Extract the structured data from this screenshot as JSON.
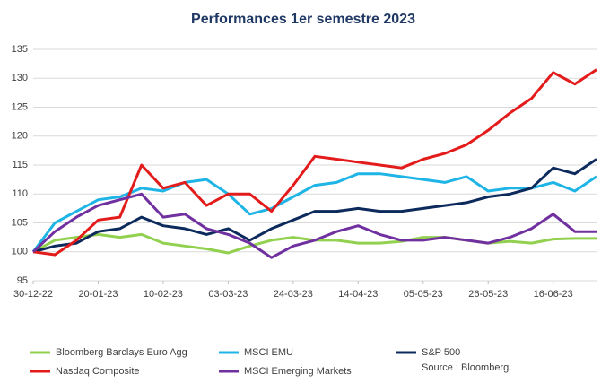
{
  "chart_data": {
    "type": "line",
    "title": "Performances 1er semestre 2023",
    "source": "Source : Bloomberg",
    "x": [
      "2022-12-30",
      "2023-01-06",
      "2023-01-13",
      "2023-01-20",
      "2023-01-27",
      "2023-02-03",
      "2023-02-10",
      "2023-02-17",
      "2023-02-24",
      "2023-03-03",
      "2023-03-10",
      "2023-03-17",
      "2023-03-24",
      "2023-03-31",
      "2023-04-07",
      "2023-04-14",
      "2023-04-21",
      "2023-04-28",
      "2023-05-05",
      "2023-05-12",
      "2023-05-19",
      "2023-05-26",
      "2023-06-02",
      "2023-06-09",
      "2023-06-16",
      "2023-06-23",
      "2023-06-30"
    ],
    "xlim": [
      "2022-12-30",
      "2023-06-30"
    ],
    "xticks": [
      {
        "value": "2022-12-30",
        "label": "30-12-22"
      },
      {
        "value": "2023-01-20",
        "label": "20-01-23"
      },
      {
        "value": "2023-02-10",
        "label": "10-02-23"
      },
      {
        "value": "2023-03-03",
        "label": "03-03-23"
      },
      {
        "value": "2023-03-24",
        "label": "24-03-23"
      },
      {
        "value": "2023-04-14",
        "label": "14-04-23"
      },
      {
        "value": "2023-05-05",
        "label": "05-05-23"
      },
      {
        "value": "2023-05-26",
        "label": "26-05-23"
      },
      {
        "value": "2023-06-16",
        "label": "16-06-23"
      }
    ],
    "ylim": [
      95,
      135
    ],
    "yticks": [
      95,
      100,
      105,
      110,
      115,
      120,
      125,
      130,
      135
    ],
    "grid": true,
    "legend": "bottom",
    "series": [
      {
        "name": "Bloomberg Barclays Euro Agg",
        "color": "#92d050",
        "values": [
          100,
          102,
          102.5,
          103,
          102.5,
          103,
          101.5,
          101,
          100.5,
          99.8,
          101,
          102,
          102.5,
          102,
          102,
          101.5,
          101.5,
          101.8,
          102.5,
          102.5,
          102,
          101.5,
          101.8,
          101.5,
          102.2,
          102.3,
          102.3
        ]
      },
      {
        "name": "MSCI EMU",
        "color": "#1fb4e6",
        "values": [
          100,
          105,
          107,
          109,
          109.5,
          111,
          110.5,
          112,
          112.5,
          110,
          106.5,
          107.5,
          109.5,
          111.5,
          112,
          113.5,
          113.5,
          113,
          112.5,
          112,
          113,
          110.5,
          111,
          111,
          112,
          110.5,
          113
        ]
      },
      {
        "name": "S&P 500",
        "color": "#0d2a5c",
        "values": [
          100,
          101,
          101.5,
          103.5,
          104,
          106,
          104.5,
          104,
          103,
          104,
          102,
          104,
          105.5,
          107,
          107,
          107.5,
          107,
          107,
          107.5,
          108,
          108.5,
          109.5,
          110,
          111,
          114.5,
          113.5,
          116
        ]
      },
      {
        "name": "Nasdaq Composite",
        "color": "#e31b1b",
        "values": [
          100,
          99.5,
          102,
          105.5,
          106,
          115,
          111,
          112,
          108,
          110,
          110,
          107,
          111.5,
          116.5,
          116,
          115.5,
          115,
          114.5,
          116,
          117,
          118.5,
          121,
          124,
          126.5,
          131,
          129,
          131.5
        ]
      },
      {
        "name": "MSCI Emerging Markets",
        "color": "#7030a0",
        "values": [
          100,
          103.5,
          106,
          108,
          109,
          110,
          106,
          106.5,
          104,
          103,
          101.5,
          99,
          101,
          102,
          103.5,
          104.5,
          103,
          102,
          102,
          102.5,
          102,
          101.5,
          102.5,
          104,
          106.5,
          103.5,
          103.5
        ]
      }
    ]
  }
}
